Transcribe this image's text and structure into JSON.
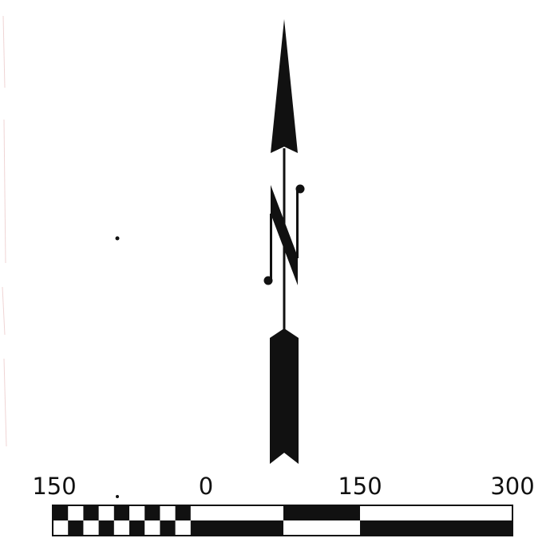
{
  "map": {
    "north_arrow": {
      "symbol": "north-arrow",
      "color": "#111111"
    },
    "scale_bar": {
      "labels": [
        "150",
        "0",
        "150",
        "300"
      ],
      "colors": {
        "dark": "#111111",
        "light": "#ffffff"
      }
    }
  }
}
